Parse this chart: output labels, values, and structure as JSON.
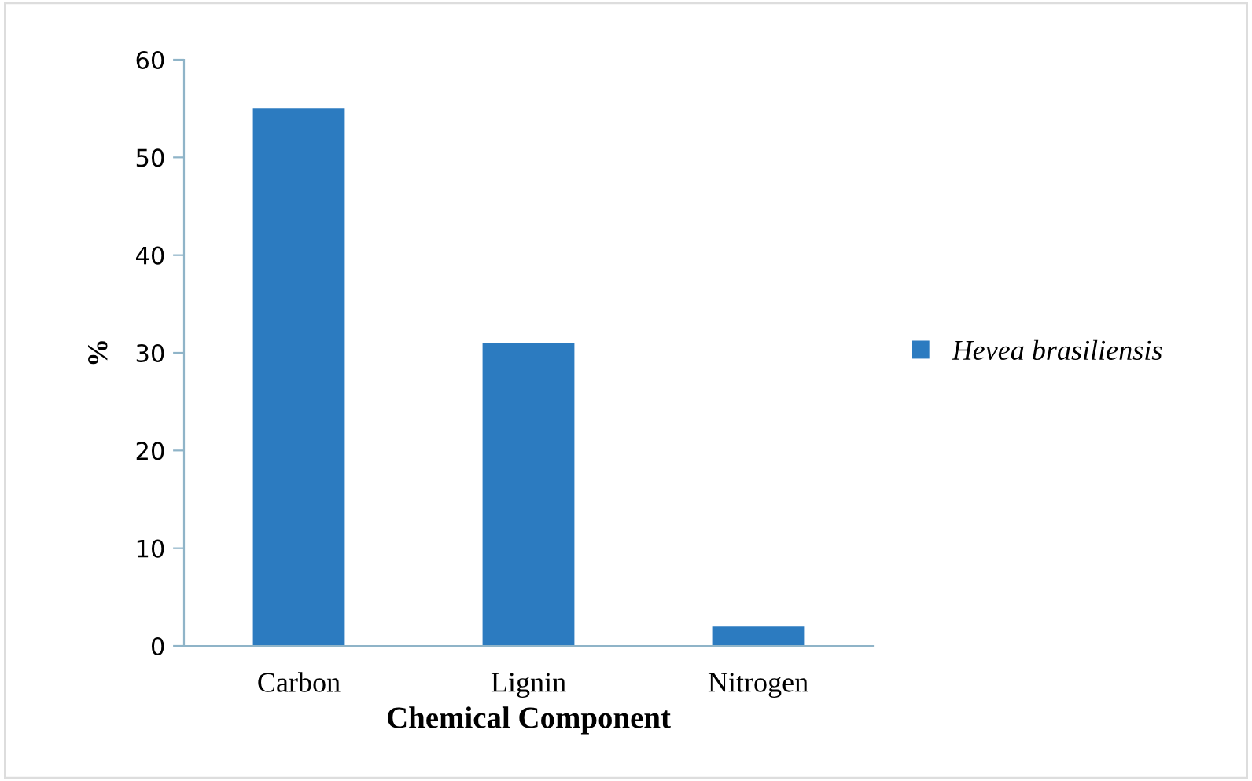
{
  "chart_data": {
    "type": "bar",
    "xlabel": "Chemical Component",
    "ylabel": "%",
    "categories": [
      "Carbon",
      "Lignin",
      "Nitrogen"
    ],
    "series": [
      {
        "name": "Hevea brasiliensis",
        "color": "#2c7bc0",
        "values": [
          55,
          31,
          2
        ]
      }
    ],
    "ylim": [
      0,
      60
    ],
    "yticks": [
      0,
      10,
      20,
      30,
      40,
      50,
      60
    ],
    "grid": false,
    "legend": "right"
  }
}
